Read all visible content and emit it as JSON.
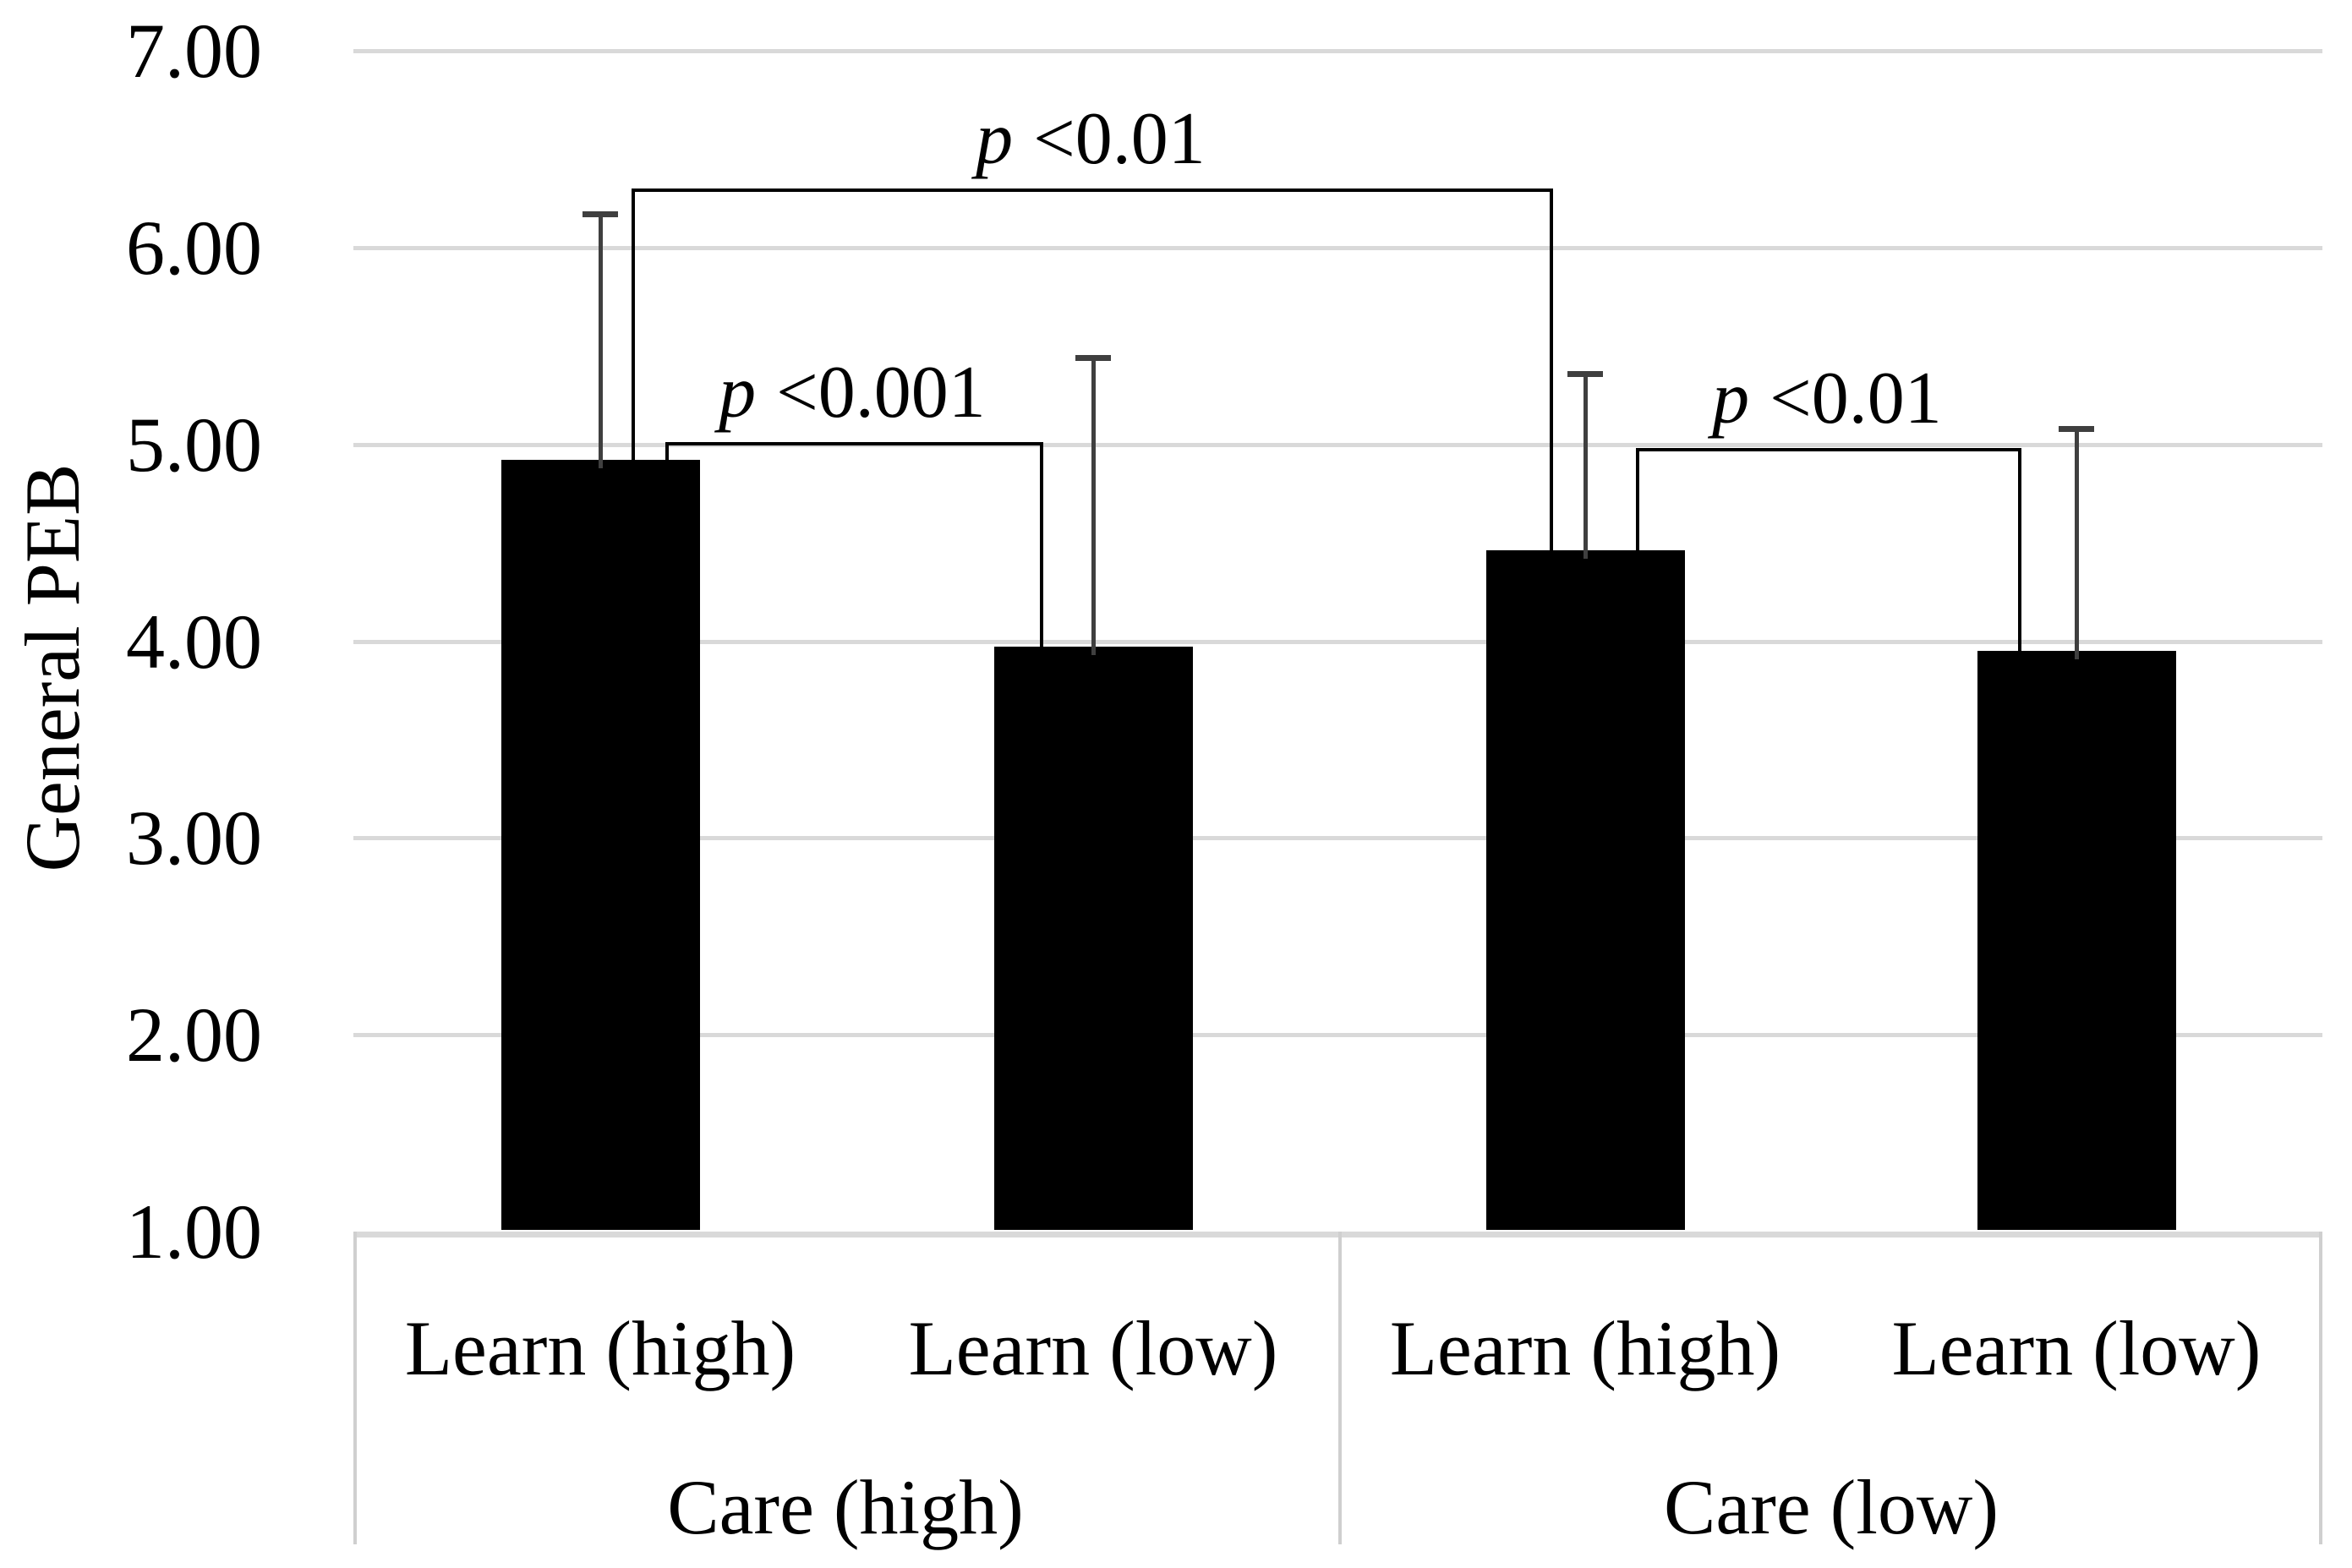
{
  "chart_data": {
    "type": "bar",
    "title": "",
    "xlabel": "",
    "ylabel": "General PEB",
    "ylim": [
      1,
      7
    ],
    "ytick_step": 1,
    "y_tick_labels": [
      "7.00",
      "6.00",
      "5.00",
      "4.00",
      "3.00",
      "2.00",
      "1.00"
    ],
    "grid": "horizontal",
    "legend": "none",
    "bar_color": "#000000",
    "error_bar_color": "#3f3f3f",
    "gridline_color": "#d9d9d9",
    "axis_table_border_color": "#cfcfcf",
    "error_bars": "upper whisker only, mean + SD",
    "groups": [
      {
        "label": "Care (high)",
        "bars": [
          {
            "label": "Learn (high)",
            "value": 4.92,
            "error_top": 6.17
          },
          {
            "label": "Learn (low)",
            "value": 3.97,
            "error_top": 5.44
          }
        ]
      },
      {
        "label": "Care (low)",
        "bars": [
          {
            "label": "Learn (high)",
            "value": 4.46,
            "error_top": 5.36
          },
          {
            "label": "Learn (low)",
            "value": 3.95,
            "error_top": 5.08
          }
        ]
      }
    ],
    "significance_brackets": [
      {
        "bars": [
          0,
          2
        ],
        "label_italic": "p",
        "label_text": "<0.01",
        "height_value": 6.3
      },
      {
        "bars": [
          0,
          1
        ],
        "label_italic": "p",
        "label_text": "<0.001",
        "height_value": 5.01
      },
      {
        "bars": [
          2,
          3
        ],
        "label_italic": "p",
        "label_text": "<0.01",
        "height_value": 4.98
      }
    ]
  }
}
